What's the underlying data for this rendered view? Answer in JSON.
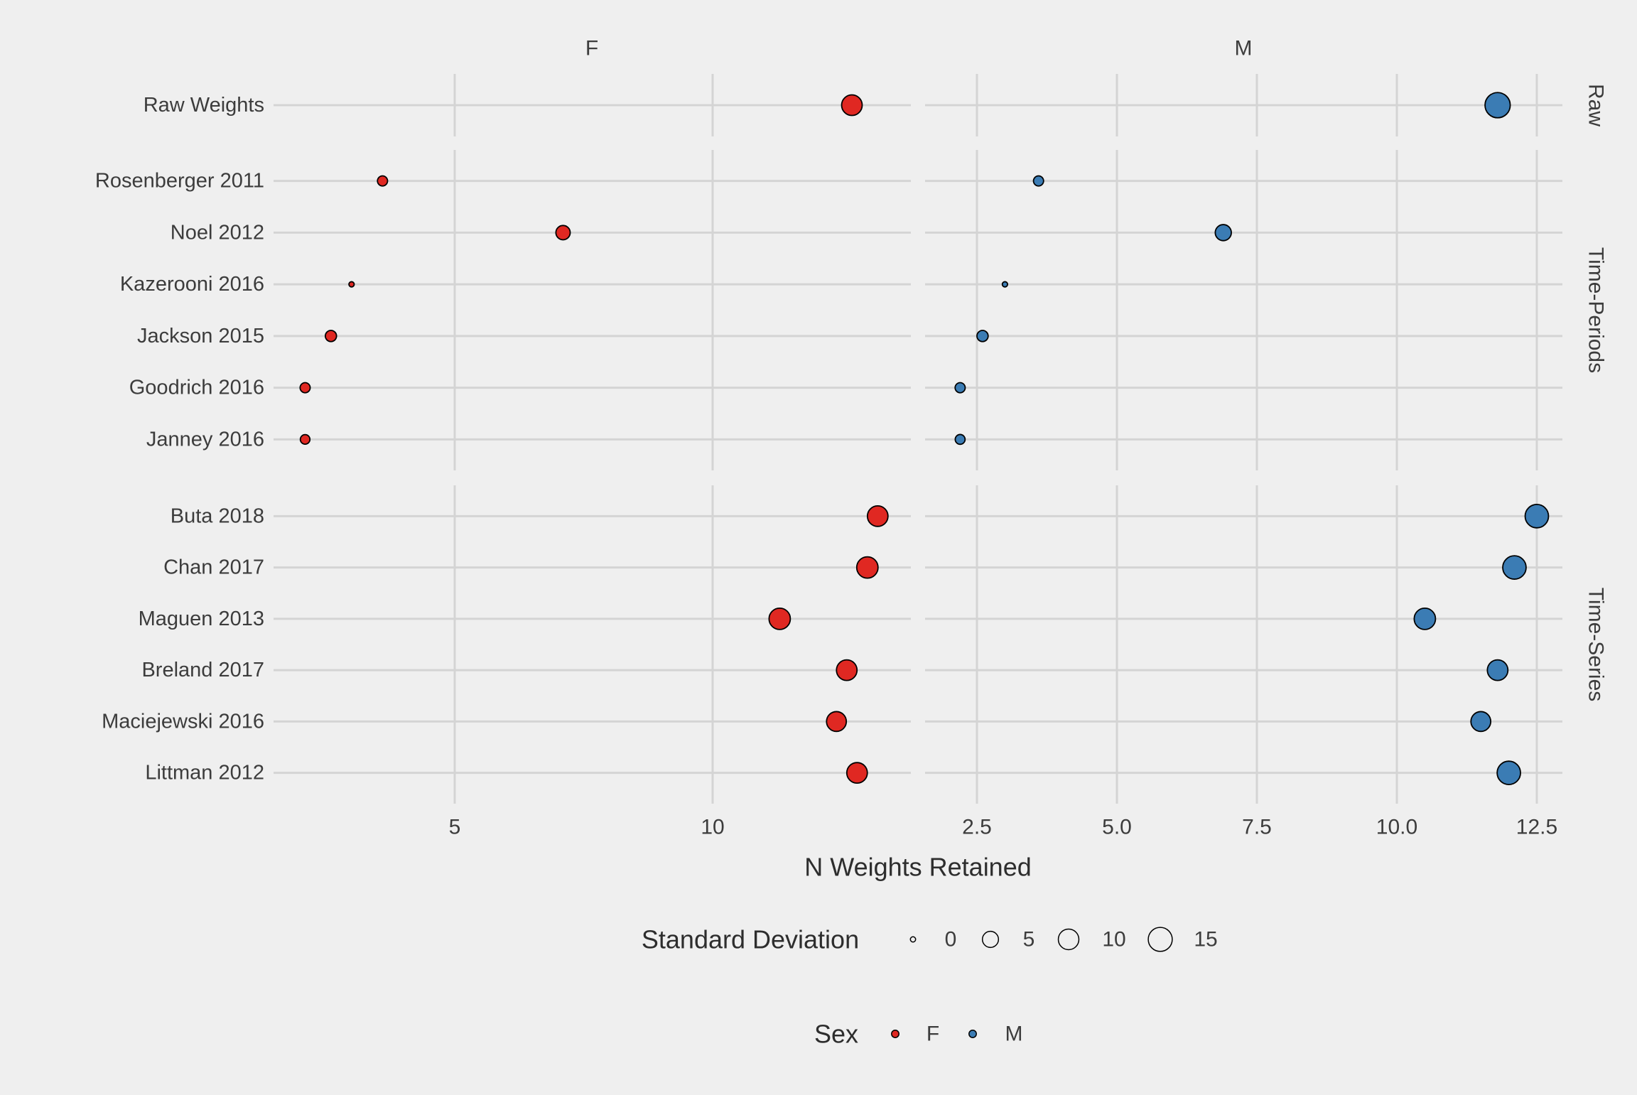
{
  "style": {
    "background": "#EFEFEF",
    "gridline": "#D4D4D4",
    "text_color": "#3C3C3C",
    "point_stroke": "#000000"
  },
  "chart_data": {
    "type": "scatter",
    "title": "",
    "xlabel": "N Weights Retained",
    "facet_cols": [
      "F",
      "M"
    ],
    "facet_rows": [
      "Raw",
      "Time-Periods",
      "Time-Series"
    ],
    "x_ticks": {
      "F": {
        "values": [
          5,
          10
        ],
        "labels": [
          "5",
          "10"
        ],
        "range": [
          1.5,
          13.8
        ]
      },
      "M": {
        "values": [
          2.5,
          5.0,
          7.5,
          10.0,
          12.5
        ],
        "labels": [
          "2.5",
          "5.0",
          "7.5",
          "10.0",
          "12.5"
        ],
        "range": [
          1.6,
          13.0
        ]
      }
    },
    "grid": "major-only",
    "legend_position": "bottom",
    "colors": {
      "F": "#E02822",
      "M": "#3B7CB4"
    },
    "size_legend": {
      "title": "Standard Deviation",
      "breaks": [
        0,
        5,
        10,
        15
      ],
      "labels": [
        "0",
        "5",
        "10",
        "15"
      ]
    },
    "color_legend": {
      "title": "Sex",
      "entries": [
        {
          "label": "F",
          "color": "#E02822"
        },
        {
          "label": "M",
          "color": "#3B7CB4"
        }
      ]
    },
    "groups": [
      {
        "facet_row": "Raw",
        "studies": [
          {
            "label": "Raw Weights",
            "F": {
              "x": 12.7,
              "sd": 10
            },
            "M": {
              "x": 11.8,
              "sd": 17
            }
          }
        ]
      },
      {
        "facet_row": "Time-Periods",
        "studies": [
          {
            "label": "Rosenberger 2011",
            "F": {
              "x": 3.6,
              "sd": 1
            },
            "M": {
              "x": 3.6,
              "sd": 1
            }
          },
          {
            "label": "Noel 2012",
            "F": {
              "x": 7.1,
              "sd": 3.5
            },
            "M": {
              "x": 6.9,
              "sd": 5
            }
          },
          {
            "label": "Kazerooni 2016",
            "F": {
              "x": 3.0,
              "sd": 0
            },
            "M": {
              "x": 3.0,
              "sd": 0
            }
          },
          {
            "label": "Jackson 2015",
            "F": {
              "x": 2.6,
              "sd": 1.5
            },
            "M": {
              "x": 2.6,
              "sd": 1.5
            }
          },
          {
            "label": "Goodrich 2016",
            "F": {
              "x": 2.1,
              "sd": 1
            },
            "M": {
              "x": 2.2,
              "sd": 1
            }
          },
          {
            "label": "Janney 2016",
            "F": {
              "x": 2.1,
              "sd": 0.8
            },
            "M": {
              "x": 2.2,
              "sd": 0.9
            }
          }
        ]
      },
      {
        "facet_row": "Time-Series",
        "studies": [
          {
            "label": "Buta 2018",
            "F": {
              "x": 13.2,
              "sd": 10
            },
            "M": {
              "x": 12.5,
              "sd": 14
            }
          },
          {
            "label": "Chan 2017",
            "F": {
              "x": 13.0,
              "sd": 11
            },
            "M": {
              "x": 12.1,
              "sd": 14
            }
          },
          {
            "label": "Maguen 2013",
            "F": {
              "x": 11.3,
              "sd": 11
            },
            "M": {
              "x": 10.5,
              "sd": 11
            }
          },
          {
            "label": "Breland 2017",
            "F": {
              "x": 12.6,
              "sd": 10
            },
            "M": {
              "x": 11.8,
              "sd": 10
            }
          },
          {
            "label": "Maciejewski 2016",
            "F": {
              "x": 12.4,
              "sd": 9
            },
            "M": {
              "x": 11.5,
              "sd": 9
            }
          },
          {
            "label": "Littman 2012",
            "F": {
              "x": 12.8,
              "sd": 10
            },
            "M": {
              "x": 12.0,
              "sd": 14
            }
          }
        ]
      }
    ]
  }
}
